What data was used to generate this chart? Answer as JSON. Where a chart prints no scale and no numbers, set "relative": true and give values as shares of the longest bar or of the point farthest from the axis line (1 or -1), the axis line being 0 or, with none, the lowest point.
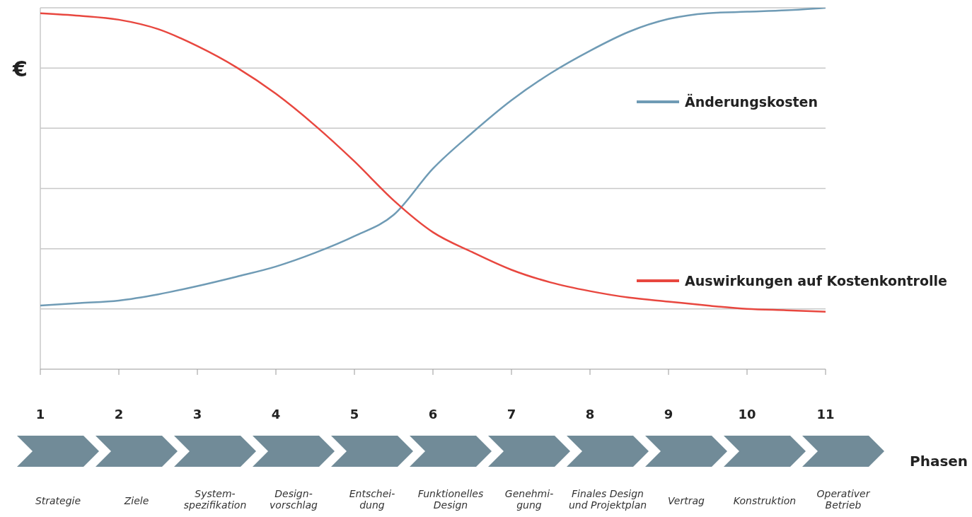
{
  "chart_data": {
    "type": "line",
    "relative": true,
    "ylabel": "€",
    "xlim": [
      1,
      11
    ],
    "xticks": [
      1,
      2,
      3,
      4,
      5,
      6,
      7,
      8,
      9,
      10,
      11
    ],
    "grid": "y",
    "legend": "right",
    "marker": "none",
    "line_style": "solid",
    "series": [
      {
        "name": "Änderungskosten",
        "color": "#6f9bb5",
        "x": [
          1,
          1.5,
          2,
          2.5,
          3,
          3.5,
          4,
          4.5,
          5,
          5.5,
          6,
          6.5,
          7,
          7.5,
          8,
          8.5,
          9,
          9.5,
          10,
          10.5,
          11
        ],
        "values": [
          0.176,
          0.183,
          0.19,
          0.207,
          0.23,
          0.256,
          0.284,
          0.322,
          0.368,
          0.427,
          0.555,
          0.654,
          0.744,
          0.819,
          0.881,
          0.934,
          0.969,
          0.985,
          0.989,
          0.993,
          1
        ]
      },
      {
        "name": "Auswirkungen auf Kostenkontrolle",
        "color": "#e8473f",
        "x": [
          1,
          1.5,
          2,
          2.5,
          3,
          3.5,
          4,
          4.5,
          5,
          5.5,
          6,
          6.5,
          7,
          7.5,
          8,
          8.5,
          9,
          9.5,
          10,
          10.5,
          11
        ],
        "values": [
          0.985,
          0.978,
          0.967,
          0.941,
          0.894,
          0.835,
          0.762,
          0.674,
          0.575,
          0.467,
          0.379,
          0.324,
          0.275,
          0.24,
          0.216,
          0.198,
          0.187,
          0.176,
          0.167,
          0.163,
          0.159
        ]
      }
    ],
    "annotations": [
      "Strategie",
      "Ziele",
      "System-\nspezifikation",
      "Design-\nvorschlag",
      "Entschei-\ndung",
      "Funktionelles\nDesign",
      "Genehmi-\ngung",
      "Finales Design\nund Projektplan",
      "Vertrag",
      "Konstruktion",
      "Operativer\nBetrieb",
      "Phasen"
    ]
  }
}
